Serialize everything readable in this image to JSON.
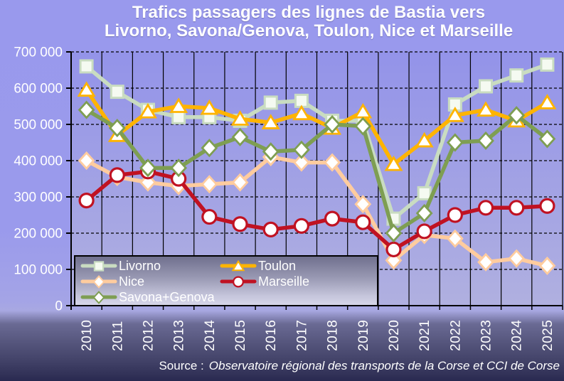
{
  "title": {
    "line1": "Trafics passagers des lignes de Bastia vers",
    "line2": "Livorno, Savona/Genova, Toulon, Nice et Marseille"
  },
  "footer": {
    "prefix": "Source :",
    "source": "Observatoire régional des transports de la Corse et CCI de Corse"
  },
  "colors": {
    "canvas_top": "#9999ED",
    "canvas_strip": "#6A6A94",
    "canvas_bottom": "#292950",
    "plot_top": "#9393E9",
    "plot_bottom": "#B0B0E0",
    "legend_top": "#70708E",
    "legend_bottom": "#D6D6E8",
    "axis": "#000000",
    "text": "#FFFFFF"
  },
  "chart_data": {
    "type": "line",
    "title": "Trafics passagers des lignes de Bastia vers Livorno, Savona/Genova, Toulon, Nice et Marseille",
    "x_categories": [
      "2010",
      "2011",
      "2012",
      "2013",
      "2014",
      "2015",
      "2016",
      "2017",
      "2018",
      "2019",
      "2020",
      "2021",
      "2022",
      "2023",
      "2024",
      "2025"
    ],
    "series": [
      {
        "name": "Livorno",
        "color": "#C9DCC1",
        "marker": "square",
        "marker_fill": "#F5FAF1",
        "values": [
          660000,
          590000,
          540000,
          520000,
          520000,
          510000,
          560000,
          565000,
          510000,
          510000,
          240000,
          310000,
          555000,
          605000,
          635000,
          665000
        ]
      },
      {
        "name": "Toulon",
        "color": "#FFB400",
        "marker": "triangle",
        "marker_fill": "#FFFFFF",
        "values": [
          595000,
          470000,
          535000,
          550000,
          545000,
          515000,
          505000,
          530000,
          490000,
          535000,
          390000,
          455000,
          525000,
          540000,
          510000,
          560000
        ]
      },
      {
        "name": "Nice",
        "color": "#FFCC9E",
        "marker": "diamond",
        "marker_fill": "#FFFFFF",
        "values": [
          400000,
          355000,
          340000,
          330000,
          335000,
          340000,
          410000,
          395000,
          395000,
          280000,
          125000,
          195000,
          185000,
          120000,
          130000,
          110000
        ]
      },
      {
        "name": "Marseille",
        "color": "#C01222",
        "marker": "circle",
        "marker_fill": "#FFFFFF",
        "values": [
          290000,
          360000,
          370000,
          350000,
          245000,
          225000,
          210000,
          220000,
          240000,
          230000,
          155000,
          205000,
          250000,
          270000,
          270000,
          275000
        ]
      },
      {
        "name": "Savona+Genova",
        "color": "#7E9E52",
        "marker": "diamond",
        "marker_fill": "#FFFFFF",
        "values": [
          540000,
          490000,
          380000,
          380000,
          435000,
          465000,
          425000,
          430000,
          500000,
          495000,
          200000,
          255000,
          450000,
          455000,
          525000,
          460000
        ]
      }
    ],
    "ylim": [
      0,
      700000
    ],
    "ytick_step": 100000,
    "ytick_labels": [
      "0",
      "100 000",
      "200 000",
      "300 000",
      "400 000",
      "500 000",
      "600 000",
      "700 000"
    ],
    "xlabel": "",
    "ylabel": "",
    "grid": {
      "horizontal": "dashed",
      "vertical": "solid"
    },
    "legend": {
      "position": "bottom-left-inside",
      "columns": [
        [
          "Livorno",
          "Nice",
          "Savona+Genova"
        ],
        [
          "Toulon",
          "Marseille"
        ]
      ]
    }
  }
}
